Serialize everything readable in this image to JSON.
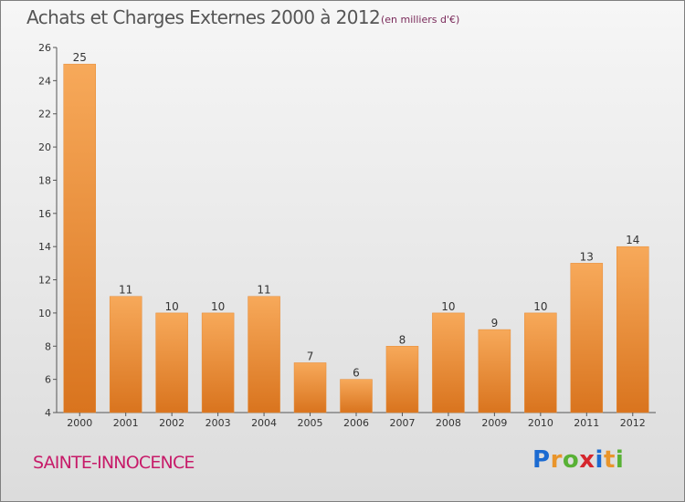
{
  "header": {
    "title": "Achats et Charges Externes 2000 à 2012",
    "unit": "(en milliers d'€)"
  },
  "footer": {
    "commune": "SAINTE-INNOCENCE",
    "logo_letters": [
      "P",
      "r",
      "o",
      "x",
      "i",
      "t",
      "i"
    ]
  },
  "colors": {
    "bar_light": "#f7a95a",
    "bar_dark": "#d9741e",
    "commune": "#c71b69"
  },
  "chart_data": {
    "type": "bar",
    "title": "Achats et Charges Externes 2000 à 2012",
    "subtitle": "(en milliers d'€)",
    "categories": [
      "2000",
      "2001",
      "2002",
      "2003",
      "2004",
      "2005",
      "2006",
      "2007",
      "2008",
      "2009",
      "2010",
      "2011",
      "2012"
    ],
    "values": [
      25,
      11,
      10,
      10,
      11,
      7,
      6,
      8,
      10,
      9,
      10,
      13,
      14
    ],
    "xlabel": "",
    "ylabel": "",
    "ylim": [
      4,
      26
    ],
    "yticks": [
      4,
      6,
      8,
      10,
      12,
      14,
      16,
      18,
      20,
      22,
      24,
      26
    ],
    "grid": false,
    "legend": "none"
  }
}
